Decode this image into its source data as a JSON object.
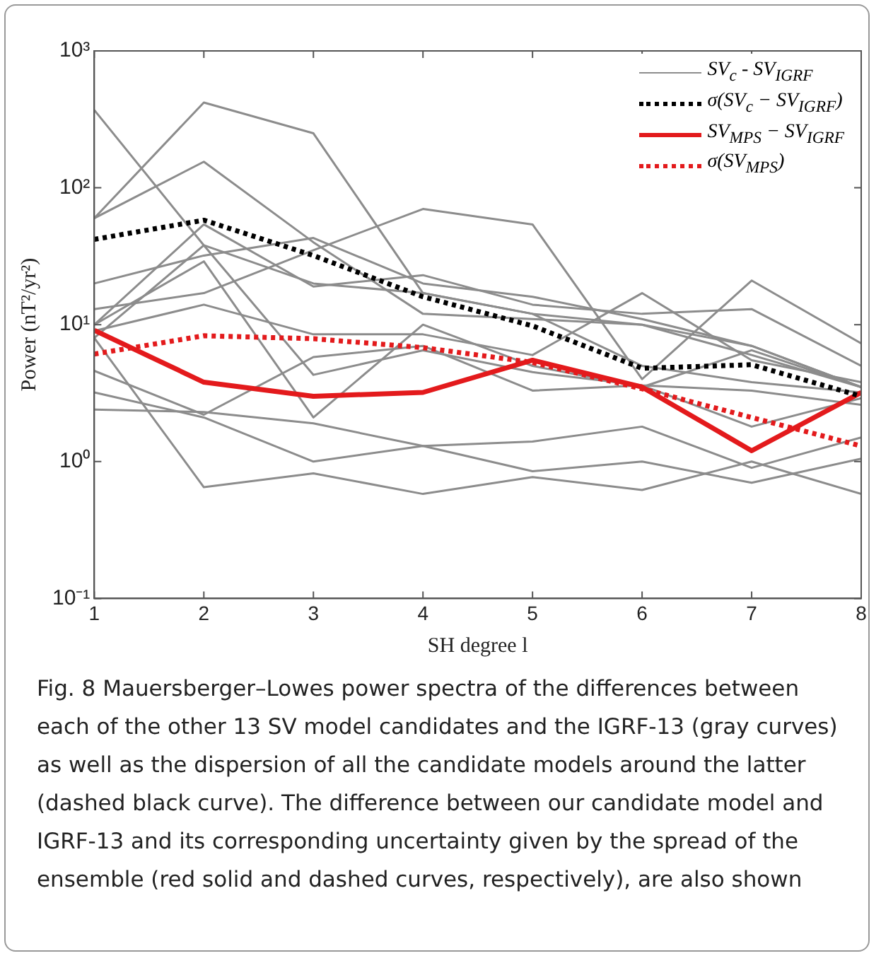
{
  "chart_data": {
    "type": "line",
    "xlabel": "SH degree l",
    "ylabel": "Power (nT²/yr²)",
    "x": [
      1,
      2,
      3,
      4,
      5,
      6,
      7,
      8
    ],
    "xlim": [
      1,
      8
    ],
    "xticks": [
      1,
      2,
      3,
      4,
      5,
      6,
      7,
      8
    ],
    "log": "y",
    "ylim": [
      0.1,
      1000
    ],
    "yticks": [
      {
        "value": 0.1,
        "label": "10⁻¹"
      },
      {
        "value": 1,
        "label": "10⁰"
      },
      {
        "value": 10,
        "label": "10¹"
      },
      {
        "value": 100,
        "label": "10²"
      },
      {
        "value": 1000,
        "label": "10³"
      }
    ],
    "grid": false,
    "legend": "top right",
    "marker": "none",
    "series": [
      {
        "name": "SV$_{c}$ - SV$_{IGRF}$",
        "color": "#8c8c8c",
        "line_style": "solid",
        "values": [
          370,
          38,
          20,
          17,
          12,
          10,
          7,
          3.5
        ]
      },
      {
        "name": "σ(SV$_{c}$ − SV$_{IGRF}$)",
        "color": "#000000",
        "line_style": "dotted",
        "values": [
          42,
          58,
          32,
          16,
          9.8,
          4.8,
          5.1,
          3.0
        ]
      },
      {
        "name": "SV$_{MPS}$ − SV$_{IGRF}$",
        "color": "#e31a1c",
        "line_style": "solid",
        "values": [
          9.1,
          3.8,
          3.0,
          3.2,
          5.5,
          3.5,
          1.2,
          3.2
        ]
      },
      {
        "name": "σ(SV$_{MPS}$)",
        "color": "#e31a1c",
        "line_style": "dotted",
        "values": [
          6.1,
          8.3,
          7.9,
          6.8,
          5.3,
          3.4,
          2.1,
          1.3
        ]
      },
      {
        "color": "#8c8c8c",
        "line_style": "solid",
        "values": [
          60,
          420,
          250,
          17,
          12,
          5,
          3.8,
          3.2
        ]
      },
      {
        "color": "#8c8c8c",
        "line_style": "solid",
        "values": [
          60,
          155,
          40,
          12,
          11,
          10,
          6,
          3.5
        ]
      },
      {
        "color": "#8c8c8c",
        "line_style": "solid",
        "values": [
          20,
          32,
          43,
          20,
          16,
          11,
          7,
          3.5
        ]
      },
      {
        "color": "#8c8c8c",
        "line_style": "solid",
        "values": [
          13,
          17,
          35,
          70,
          54,
          4,
          21,
          7.3
        ]
      },
      {
        "color": "#8c8c8c",
        "line_style": "solid",
        "values": [
          10,
          54,
          19,
          23,
          14,
          12,
          13,
          5
        ]
      },
      {
        "color": "#8c8c8c",
        "line_style": "solid",
        "values": [
          10,
          29,
          2.1,
          10,
          5,
          3.5,
          6.5,
          3.5
        ]
      },
      {
        "color": "#8c8c8c",
        "line_style": "solid",
        "values": [
          9,
          14,
          8.5,
          8.5,
          6,
          17,
          5.5,
          3.8
        ]
      },
      {
        "color": "#8c8c8c",
        "line_style": "solid",
        "values": [
          8,
          38,
          4.3,
          6.5,
          4.5,
          3.6,
          3.3,
          2.6
        ]
      },
      {
        "color": "#8c8c8c",
        "line_style": "solid",
        "values": [
          4.6,
          2.2,
          5.8,
          7,
          3.3,
          3.6,
          1.8,
          2.9
        ]
      },
      {
        "color": "#8c8c8c",
        "line_style": "solid",
        "values": [
          2.4,
          2.3,
          1.9,
          1.3,
          1.4,
          1.8,
          0.9,
          1.5
        ]
      },
      {
        "color": "#8c8c8c",
        "line_style": "solid",
        "values": [
          3.2,
          2.1,
          1.0,
          1.3,
          0.85,
          1.0,
          0.7,
          1.05
        ]
      },
      {
        "color": "#8c8c8c",
        "line_style": "solid",
        "values": [
          8,
          0.65,
          0.82,
          0.58,
          0.77,
          0.62,
          1.0,
          0.58
        ]
      }
    ],
    "annotations": [
      "Fig. 8 Mauersberger–Lowes power spectra of the differences between each of the other 13 SV model candidates and the IGRF-13 (gray curves) as well as the dispersion of all the candidate models around the latter (dashed black curve). The difference between our candidate model and IGRF-13 and its corresponding uncertainty given by the spread of the ensemble (red solid and dashed curves, respectively), are also shown"
    ]
  }
}
